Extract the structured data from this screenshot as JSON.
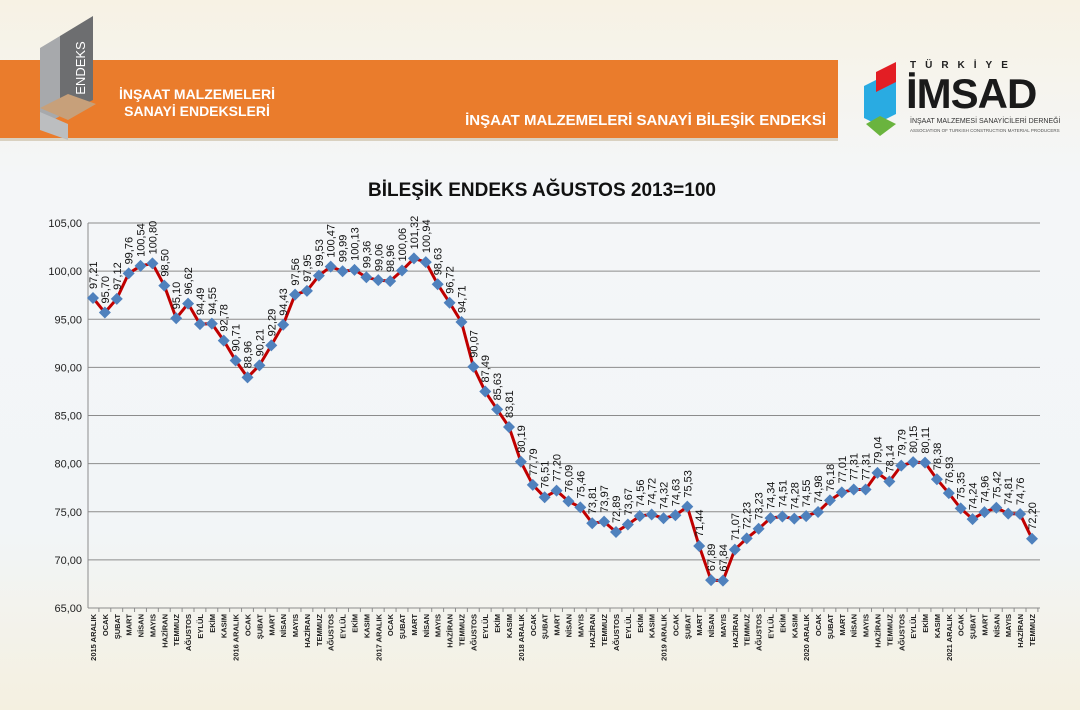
{
  "header": {
    "logo_text": "ENDEKS",
    "left_title_line1": "İNŞAAT MALZEMELERİ",
    "left_title_line2": "SANAYİ ENDEKSLERİ",
    "right_title": "İNŞAAT MALZEMELERİ SANAYİ BİLEŞİK ENDEKSİ",
    "brand": {
      "country": "TÜRKİYE",
      "name": "İMSAD",
      "subtitle": "İNŞAAT MALZEMESİ SANAYİCİLERİ DERNEĞİ",
      "subtitle_en": "ASSOCIATION OF TURKISH CONSTRUCTION MATERIAL PRODUCERS"
    },
    "colors": {
      "banner": "#ea7c2c"
    }
  },
  "chart_data": {
    "type": "line",
    "title": "BİLEŞİK ENDEKS AĞUSTOS 2013=100",
    "xlabel": "",
    "ylabel": "",
    "ylim": [
      65,
      105
    ],
    "yticks": [
      "65,00",
      "70,00",
      "75,00",
      "80,00",
      "85,00",
      "90,00",
      "95,00",
      "100,00",
      "105,00"
    ],
    "grid": true,
    "colors": {
      "line": "#c00000",
      "marker": "#4f81bd"
    },
    "categories": [
      "2015 ARALIK",
      "OCAK",
      "ŞUBAT",
      "MART",
      "NİSAN",
      "MAYIS",
      "HAZİRAN",
      "TEMMUZ",
      "AĞUSTOS",
      "EYLÜL",
      "EKİM",
      "KASIM",
      "2016 ARALIK",
      "OCAK",
      "ŞUBAT",
      "MART",
      "NİSAN",
      "MAYIS",
      "HAZİRAN",
      "TEMMUZ",
      "AĞUSTOS",
      "EYLÜL",
      "EKİM",
      "KASIM",
      "2017 ARALIK",
      "OCAK",
      "ŞUBAT",
      "MART",
      "NİSAN",
      "MAYIS",
      "HAZİRAN",
      "TEMMUZ",
      "AĞUSTOS",
      "EYLÜL",
      "EKİM",
      "KASIM",
      "2018 ARALIK",
      "OCAK",
      "ŞUBAT",
      "MART",
      "NİSAN",
      "MAYIS",
      "HAZİRAN",
      "TEMMUZ",
      "AĞUSTOS",
      "EYLÜL",
      "EKİM",
      "KASIM",
      "2019 ARALIK",
      "OCAK",
      "ŞUBAT",
      "MART",
      "NİSAN",
      "MAYIS",
      "HAZİRAN",
      "TEMMUZ",
      "AĞUSTOS",
      "EYLÜL",
      "EKİM",
      "KASIM",
      "2020 ARALIK",
      "OCAK",
      "ŞUBAT",
      "MART",
      "NİSAN",
      "MAYIS",
      "HAZİRAN",
      "TEMMUZ",
      "AĞUSTOS",
      "EYLÜL",
      "EKİM",
      "KASIM",
      "2021 ARALIK",
      "OCAK",
      "ŞUBAT",
      "MART",
      "NİSAN",
      "MAYIS",
      "HAZİRAN",
      "TEMMUZ"
    ],
    "values": [
      97.21,
      95.7,
      97.12,
      99.76,
      100.54,
      100.8,
      98.5,
      95.1,
      96.62,
      94.49,
      94.55,
      92.78,
      90.71,
      88.96,
      90.21,
      92.29,
      94.43,
      97.56,
      97.95,
      99.53,
      100.47,
      99.99,
      100.13,
      99.36,
      99.06,
      98.96,
      100.06,
      101.32,
      100.94,
      98.63,
      96.72,
      94.71,
      90.07,
      87.49,
      85.63,
      83.81,
      80.19,
      77.79,
      76.51,
      77.2,
      76.09,
      75.46,
      73.81,
      73.97,
      72.89,
      73.67,
      74.56,
      74.72,
      74.32,
      74.63,
      75.53,
      71.44,
      67.89,
      67.84,
      71.07,
      72.23,
      73.23,
      74.34,
      74.51,
      74.28,
      74.55,
      74.98,
      76.18,
      77.01,
      77.31,
      77.31,
      79.04,
      78.14,
      79.79,
      80.15,
      80.11,
      78.38,
      76.93,
      75.35,
      74.24,
      74.96,
      75.42,
      74.81,
      74.76,
      72.2
    ]
  }
}
